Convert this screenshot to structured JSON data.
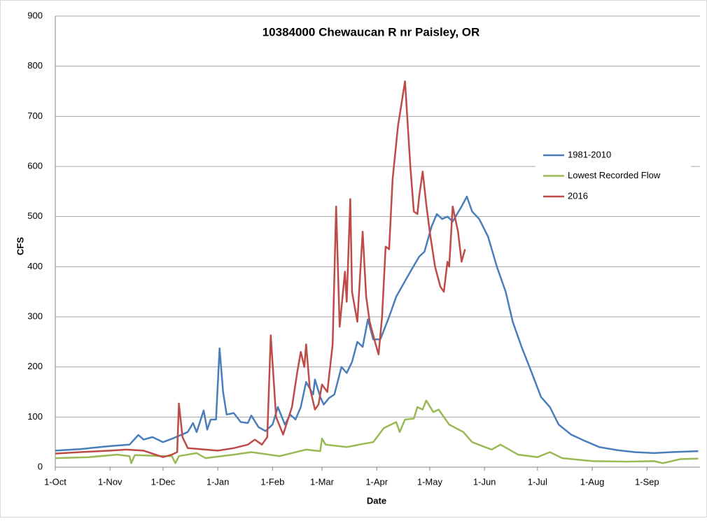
{
  "chart_data": {
    "type": "line",
    "title": "10384000  Chewaucan R nr Paisley, OR",
    "xlabel": "Date",
    "ylabel": "CFS",
    "xlim": [
      "1-Oct",
      "30-Sep"
    ],
    "xticks": [
      "1-Oct",
      "1-Nov",
      "1-Dec",
      "1-Jan",
      "1-Feb",
      "1-Mar",
      "1-Apr",
      "1-May",
      "1-Jun",
      "1-Jul",
      "1-Aug",
      "1-Sep"
    ],
    "ylim": [
      0,
      900
    ],
    "yticks": [
      0,
      100,
      200,
      300,
      400,
      500,
      600,
      700,
      800,
      900
    ],
    "grid": true,
    "legend": "right",
    "series": [
      {
        "name": "1981-2010",
        "color": "#4a7ebb",
        "x": [
          "1-Oct",
          "15-Oct",
          "1-Nov",
          "12-Nov",
          "17-Nov",
          "20-Nov",
          "25-Nov",
          "1-Dec",
          "7-Dec",
          "15-Dec",
          "18-Dec",
          "20-Dec",
          "24-Dec",
          "26-Dec",
          "28-Dec",
          "31-Dec",
          "2-Jan",
          "4-Jan",
          "6-Jan",
          "10-Jan",
          "14-Jan",
          "18-Jan",
          "20-Jan",
          "24-Jan",
          "28-Jan",
          "1-Feb",
          "4-Feb",
          "8-Feb",
          "11-Feb",
          "14-Feb",
          "17-Feb",
          "20-Feb",
          "24-Feb",
          "25-Feb",
          "28-Feb",
          "2-Mar",
          "5-Mar",
          "8-Mar",
          "12-Mar",
          "15-Mar",
          "18-Mar",
          "21-Mar",
          "24-Mar",
          "27-Mar",
          "30-Mar",
          "3-Apr",
          "8-Apr",
          "12-Apr",
          "16-Apr",
          "20-Apr",
          "25-Apr",
          "28-Apr",
          "2-May",
          "5-May",
          "8-May",
          "11-May",
          "14-May",
          "19-May",
          "22-May",
          "25-May",
          "29-May",
          "3-Jun",
          "8-Jun",
          "13-Jun",
          "17-Jun",
          "22-Jun",
          "27-Jun",
          "3-Jul",
          "8-Jul",
          "13-Jul",
          "20-Jul",
          "28-Jul",
          "5-Aug",
          "15-Aug",
          "25-Aug",
          "5-Sep",
          "15-Sep",
          "30-Sep"
        ],
        "values": [
          33,
          36,
          42,
          45,
          64,
          55,
          60,
          50,
          58,
          70,
          88,
          70,
          113,
          75,
          95,
          95,
          237,
          150,
          105,
          108,
          90,
          88,
          103,
          80,
          72,
          85,
          120,
          85,
          105,
          95,
          120,
          170,
          145,
          175,
          140,
          125,
          138,
          145,
          200,
          188,
          210,
          250,
          240,
          295,
          255,
          255,
          300,
          340,
          365,
          390,
          420,
          430,
          480,
          505,
          495,
          500,
          490,
          520,
          540,
          510,
          495,
          460,
          400,
          350,
          290,
          240,
          195,
          140,
          120,
          85,
          65,
          52,
          40,
          34,
          30,
          28,
          30,
          32
        ]
      },
      {
        "name": "Lowest Recorded Flow",
        "color": "#98b954",
        "x": [
          "1-Oct",
          "20-Oct",
          "5-Nov",
          "12-Nov",
          "13-Nov",
          "15-Nov",
          "1-Dec",
          "6-Dec",
          "8-Dec",
          "10-Dec",
          "20-Dec",
          "25-Dec",
          "10-Jan",
          "20-Jan",
          "5-Feb",
          "20-Feb",
          "28-Feb",
          "1-Mar",
          "3-Mar",
          "15-Mar",
          "22-Mar",
          "30-Mar",
          "5-Apr",
          "12-Apr",
          "14-Apr",
          "17-Apr",
          "22-Apr",
          "24-Apr",
          "27-Apr",
          "29-Apr",
          "3-May",
          "6-May",
          "12-May",
          "20-May",
          "25-May",
          "5-Jun",
          "10-Jun",
          "20-Jun",
          "1-Jul",
          "8-Jul",
          "15-Jul",
          "1-Aug",
          "20-Aug",
          "5-Sep",
          "10-Sep",
          "20-Sep",
          "30-Sep"
        ],
        "values": [
          18,
          20,
          25,
          22,
          8,
          24,
          22,
          22,
          8,
          22,
          28,
          18,
          25,
          30,
          22,
          35,
          32,
          57,
          45,
          40,
          45,
          50,
          78,
          90,
          70,
          95,
          97,
          120,
          115,
          133,
          110,
          115,
          85,
          70,
          50,
          35,
          45,
          25,
          20,
          30,
          18,
          12,
          11,
          12,
          8,
          16,
          17
        ]
      },
      {
        "name": "2016",
        "color": "#be4b48",
        "x": [
          "1-Oct",
          "15-Oct",
          "1-Nov",
          "10-Nov",
          "20-Nov",
          "1-Dec",
          "6-Dec",
          "9-Dec",
          "10-Dec",
          "12-Dec",
          "15-Dec",
          "22-Dec",
          "1-Jan",
          "10-Jan",
          "18-Jan",
          "22-Jan",
          "26-Jan",
          "29-Jan",
          "31-Jan",
          "3-Feb",
          "7-Feb",
          "12-Feb",
          "15-Feb",
          "17-Feb",
          "19-Feb",
          "20-Feb",
          "22-Feb",
          "25-Feb",
          "27-Feb",
          "1-Mar",
          "4-Mar",
          "7-Mar",
          "9-Mar",
          "11-Mar",
          "14-Mar",
          "15-Mar",
          "17-Mar",
          "18-Mar",
          "21-Mar",
          "24-Mar",
          "26-Mar",
          "28-Mar",
          "31-Mar",
          "2-Apr",
          "4-Apr",
          "6-Apr",
          "8-Apr",
          "10-Apr",
          "13-Apr",
          "17-Apr",
          "20-Apr",
          "22-Apr",
          "24-Apr",
          "25-Apr",
          "27-Apr",
          "29-Apr",
          "1-May",
          "4-May",
          "7-May",
          "9-May",
          "11-May",
          "12-May",
          "14-May",
          "17-May",
          "19-May",
          "21-May"
        ],
        "values": [
          27,
          30,
          33,
          35,
          33,
          20,
          25,
          30,
          127,
          60,
          38,
          36,
          33,
          38,
          45,
          55,
          45,
          60,
          263,
          100,
          65,
          120,
          190,
          230,
          200,
          245,
          160,
          115,
          125,
          165,
          150,
          245,
          520,
          280,
          390,
          330,
          535,
          350,
          290,
          470,
          340,
          290,
          250,
          225,
          300,
          440,
          435,
          575,
          680,
          770,
          600,
          510,
          505,
          540,
          590,
          525,
          470,
          400,
          360,
          350,
          410,
          400,
          520,
          470,
          410,
          435
        ]
      }
    ]
  }
}
